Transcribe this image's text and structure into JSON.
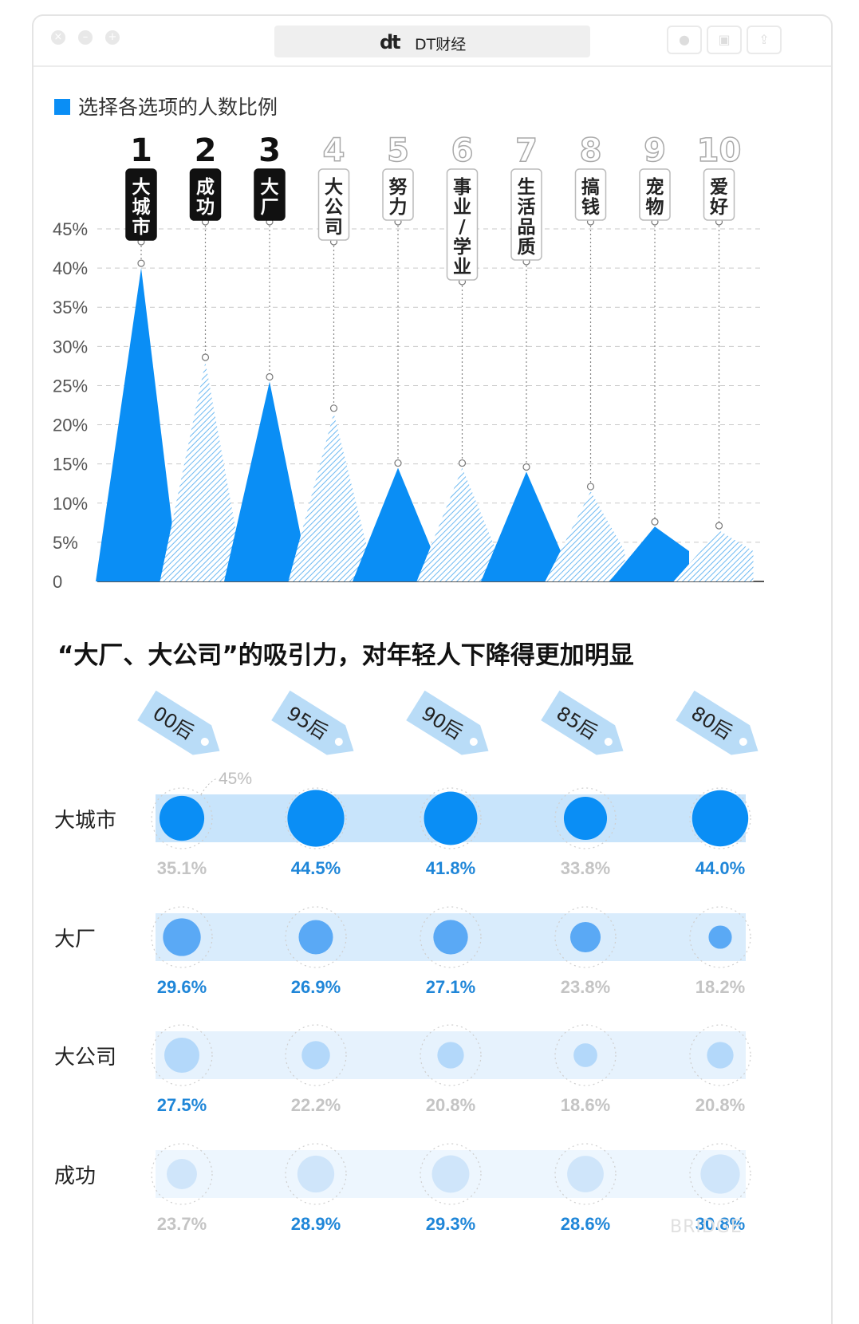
{
  "window": {
    "title": "DT财经",
    "logo_text": "dt",
    "controls": [
      "close-icon",
      "minimize-icon",
      "maximize-icon"
    ],
    "toolbar_icons": [
      "record-icon",
      "lock-icon",
      "share-icon"
    ]
  },
  "legend": {
    "label": "选择各选项的人数比例",
    "color": "#0a8ef5"
  },
  "chart_data": [
    {
      "type": "area",
      "ylim": [
        0,
        45
      ],
      "yticks": [
        "0",
        "5%",
        "10%",
        "15%",
        "20%",
        "25%",
        "30%",
        "35%",
        "40%",
        "45%"
      ],
      "grid": true,
      "legend": "top-left",
      "series": [
        {
          "name": "选择各选项的人数比例"
        }
      ],
      "categories": [
        {
          "rank": "1",
          "label": "大城市",
          "value": 40.0,
          "highlight": true
        },
        {
          "rank": "2",
          "label": "成功",
          "value": 28.0,
          "highlight": true
        },
        {
          "rank": "3",
          "label": "大厂",
          "value": 25.5,
          "highlight": true
        },
        {
          "rank": "4",
          "label": "大公司",
          "value": 21.5,
          "highlight": false
        },
        {
          "rank": "5",
          "label": "努力",
          "value": 14.5,
          "highlight": false
        },
        {
          "rank": "6",
          "label": "事业/学业",
          "value": 14.5,
          "highlight": false
        },
        {
          "rank": "7",
          "label": "生活品质",
          "value": 14.0,
          "highlight": false
        },
        {
          "rank": "8",
          "label": "搞钱",
          "value": 11.5,
          "highlight": false
        },
        {
          "rank": "9",
          "label": "宠物",
          "value": 7.0,
          "highlight": false
        },
        {
          "rank": "10",
          "label": "爱好",
          "value": 6.5,
          "highlight": false
        }
      ]
    },
    {
      "type": "scatter",
      "title": "“大厂、大公司”的吸引力，对年轻人下降得更加明显",
      "reference_label": "45%",
      "columns": [
        "00后",
        "95后",
        "90后",
        "85后",
        "80后"
      ],
      "rows": [
        {
          "label": "大城市",
          "values": [
            35.1,
            44.5,
            41.8,
            33.8,
            44.0
          ],
          "labels": [
            "35.1%",
            "44.5%",
            "41.8%",
            "33.8%",
            "44.0%"
          ],
          "color": "#0a8ef5",
          "band": "#c8e4fb"
        },
        {
          "label": "大厂",
          "values": [
            29.6,
            26.9,
            27.1,
            23.8,
            18.2
          ],
          "labels": [
            "29.6%",
            "26.9%",
            "27.1%",
            "23.8%",
            "18.2%"
          ],
          "color": "#5aa9f5",
          "band": "#d9ecfc"
        },
        {
          "label": "大公司",
          "values": [
            27.5,
            22.2,
            20.8,
            18.6,
            20.8
          ],
          "labels": [
            "27.5%",
            "22.2%",
            "20.8%",
            "18.6%",
            "20.8%"
          ],
          "color": "#b3d8fa",
          "band": "#e6f2fd"
        },
        {
          "label": "成功",
          "values": [
            23.7,
            28.9,
            29.3,
            28.6,
            30.8
          ],
          "labels": [
            "23.7%",
            "28.9%",
            "29.3%",
            "28.6%",
            "30.8%"
          ],
          "color": "#cfe5fa",
          "band": "#edf6fe"
        }
      ]
    }
  ],
  "watermark": "BRIDGE"
}
